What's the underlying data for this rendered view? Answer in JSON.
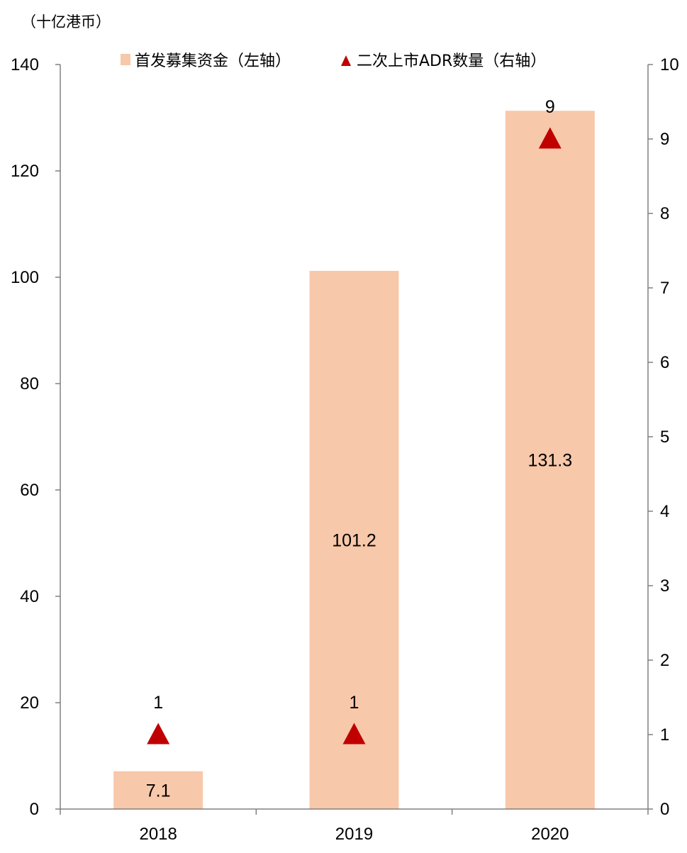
{
  "chart_data": {
    "type": "bar",
    "unit_label": "（十亿港币）",
    "categories": [
      "2018",
      "2019",
      "2020"
    ],
    "series": [
      {
        "name": "首发募集资金（左轴）",
        "kind": "bar",
        "axis": "left",
        "color": "#f7c8aa",
        "values": [
          7.1,
          101.2,
          131.3
        ],
        "labels": [
          "7.1",
          "101.2",
          "131.3"
        ]
      },
      {
        "name": "二次上市ADR数量（右轴）",
        "kind": "marker",
        "marker": "triangle",
        "axis": "right",
        "color": "#c00000",
        "values": [
          1,
          1,
          9
        ],
        "labels": [
          "1",
          "1",
          "9"
        ]
      }
    ],
    "left_axis": {
      "min": 0,
      "max": 140,
      "ticks": [
        "0",
        "20",
        "40",
        "60",
        "80",
        "100",
        "120",
        "140"
      ]
    },
    "right_axis": {
      "min": 0,
      "max": 10,
      "ticks": [
        "0",
        "1",
        "2",
        "3",
        "4",
        "5",
        "6",
        "7",
        "8",
        "9",
        "10"
      ]
    },
    "legend_position": "top",
    "grid": false
  }
}
